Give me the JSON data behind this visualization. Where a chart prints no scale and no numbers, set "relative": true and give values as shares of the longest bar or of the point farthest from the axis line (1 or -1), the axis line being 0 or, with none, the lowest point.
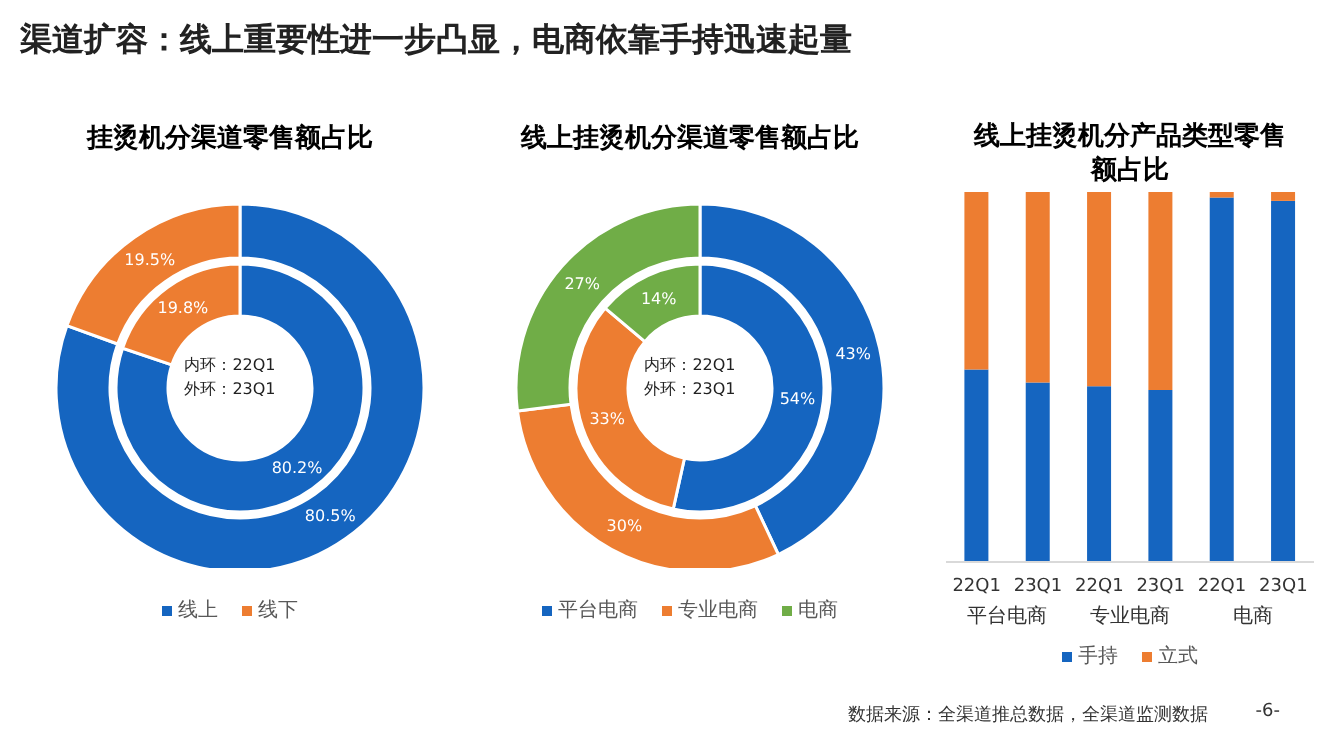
{
  "chart_data": [
    {
      "type": "other",
      "title": "渠道扩容：线上重要性进一步凸显，电商依靠手持迅速起量",
      "annotations": [
        "数据来源：全渠道推总数据，全渠道监测数据",
        "-6-"
      ]
    },
    {
      "type": "donut",
      "title": "挂烫机分渠道零售额占比",
      "categories": [
        "线上",
        "线下"
      ],
      "series": [
        {
          "values": [
            80.2,
            19.8
          ],
          "colors": [
            "#1565c0",
            "#ed7d31"
          ],
          "value_labels": [
            "80.2%",
            "19.8%"
          ]
        },
        {
          "values": [
            80.5,
            19.5
          ],
          "colors": [
            "#1565c0",
            "#ed7d31"
          ],
          "value_labels": [
            "80.5%",
            "19.5%"
          ]
        }
      ],
      "annotations": [
        "内环：22Q1",
        "外环：23Q1"
      ],
      "legend": "bottom"
    },
    {
      "type": "donut",
      "title": "线上挂烫机分渠道零售额占比",
      "categories": [
        "平台电商",
        "专业电商",
        "电商"
      ],
      "series": [
        {
          "values": [
            54,
            33,
            14
          ],
          "colors": [
            "#1565c0",
            "#ed7d31",
            "#70ad47"
          ],
          "value_labels": [
            "54%",
            "33%",
            "14%"
          ]
        },
        {
          "values": [
            43,
            30,
            27
          ],
          "colors": [
            "#1565c0",
            "#ed7d31",
            "#70ad47"
          ],
          "value_labels": [
            "43%",
            "30%",
            "27%"
          ]
        }
      ],
      "annotations": [
        "内环：22Q1",
        "外环：23Q1"
      ],
      "legend": "bottom"
    },
    {
      "type": "bar",
      "title": "线上挂烫机分产品类型零售额占比",
      "categories": [
        "22Q1",
        "23Q1",
        "22Q1",
        "23Q1",
        "22Q1",
        "23Q1"
      ],
      "stacked": true,
      "relative": true,
      "series": [
        {
          "name": "手持",
          "color": "#1565c0",
          "values": [
            0.52,
            0.485,
            0.475,
            0.465,
            0.985,
            0.976
          ]
        },
        {
          "name": "立式",
          "color": "#ed7d31",
          "values": [
            0.48,
            0.515,
            0.525,
            0.535,
            0.015,
            0.024
          ]
        }
      ],
      "annotations": [
        "平台电商",
        "专业电商",
        "电商"
      ],
      "legend": "bottom"
    }
  ]
}
